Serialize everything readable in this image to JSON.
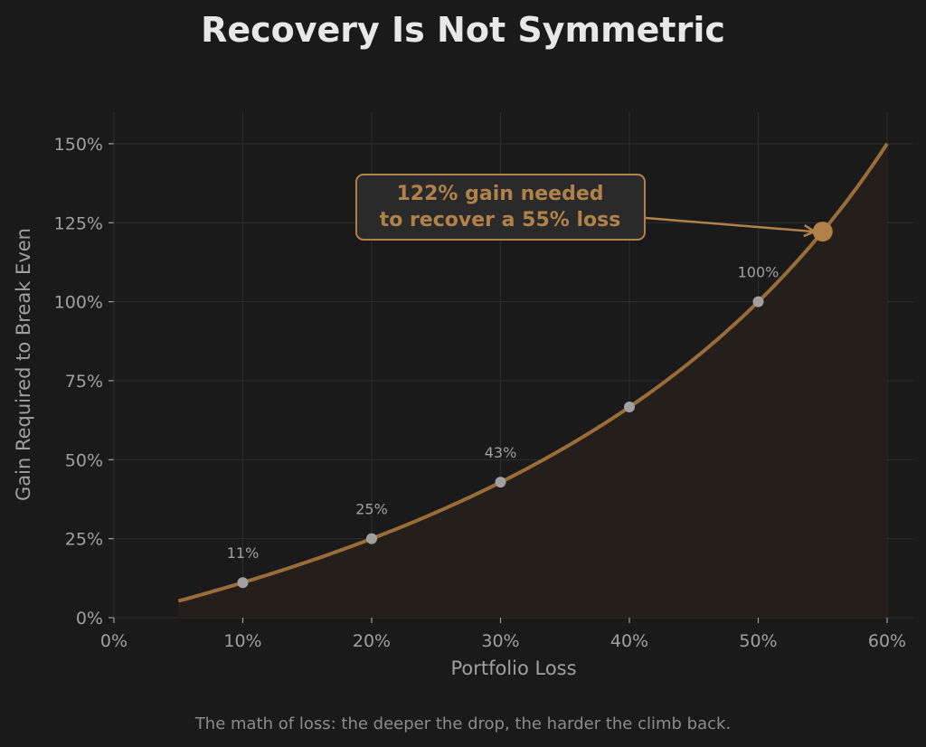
{
  "chart_data": {
    "type": "line",
    "title": "Recovery Is Not Symmetric",
    "xlabel": "Portfolio Loss",
    "ylabel": "Gain Required to Break Even",
    "caption": "The math of loss: the deeper the drop, the harder the climb back.",
    "xlim": [
      0,
      62
    ],
    "ylim": [
      0,
      160
    ],
    "x_ticks": [
      0,
      10,
      20,
      30,
      40,
      50,
      60
    ],
    "x_tick_labels": [
      "0%",
      "10%",
      "20%",
      "30%",
      "40%",
      "50%",
      "60%"
    ],
    "y_ticks": [
      0,
      25,
      50,
      75,
      100,
      125,
      150
    ],
    "y_tick_labels": [
      "0%",
      "25%",
      "50%",
      "75%",
      "100%",
      "125%",
      "150%"
    ],
    "grid": true,
    "curve": {
      "formula": "gain = loss / (1 - loss)",
      "x_range": [
        5,
        60
      ]
    },
    "markers": [
      {
        "x": 10,
        "y": 11.1,
        "label": "11%"
      },
      {
        "x": 20,
        "y": 25.0,
        "label": "25%"
      },
      {
        "x": 30,
        "y": 42.9,
        "label": "43%"
      },
      {
        "x": 40,
        "y": 66.7,
        "label": ""
      },
      {
        "x": 50,
        "y": 100.0,
        "label": "100%"
      }
    ],
    "highlight": {
      "x": 55,
      "y": 122.2
    },
    "annotation": {
      "line1": "122% gain needed",
      "line2": "to recover a 55% loss"
    },
    "colors": {
      "background": "#1a1a1a",
      "curve": "#9a6c38",
      "highlight": "#b0824a",
      "marker": "#a0a0a0",
      "grid": "#2e2e2e",
      "fill": "#241f1a",
      "annotation_box": "#2a2a2a"
    }
  }
}
